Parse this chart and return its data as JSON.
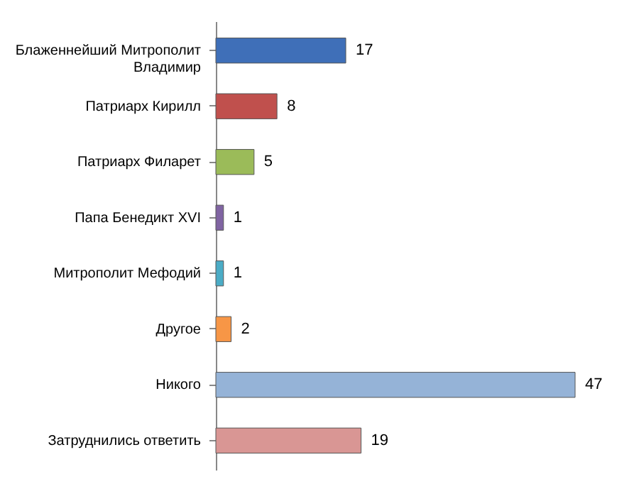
{
  "chart_data": {
    "type": "bar",
    "orientation": "horizontal",
    "data_labels": true,
    "grid": false,
    "legend": false,
    "categories": [
      "Блаженнейший Митрополит Владимир",
      "Патриарх Кирилл",
      "Патриарх Филарет",
      "Папа Бенедикт XVI",
      "Митрополит Мефодий",
      "Другое",
      "Никого",
      "Затруднились ответить"
    ],
    "values": [
      17,
      8,
      5,
      1,
      1,
      2,
      47,
      19
    ],
    "colors": [
      "#3f6fb8",
      "#c0504d",
      "#9bbb59",
      "#8064a2",
      "#4bacc6",
      "#f79646",
      "#95b3d7",
      "#d99694"
    ]
  }
}
